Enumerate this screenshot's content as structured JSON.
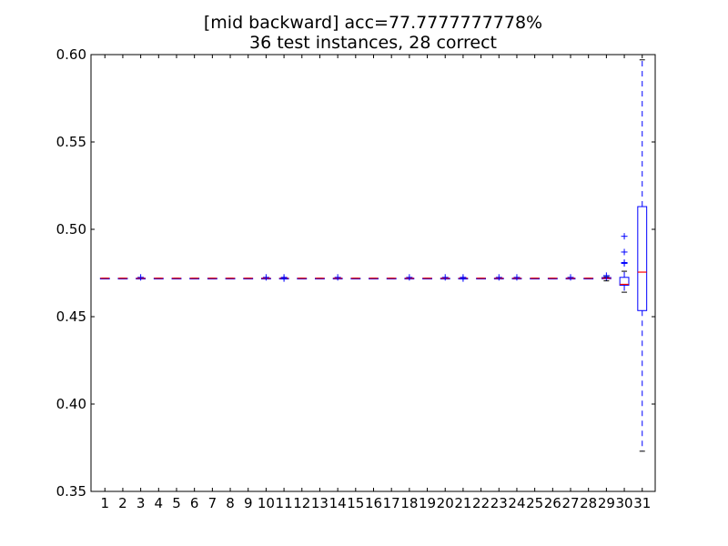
{
  "chart_data": {
    "type": "box",
    "title": "[mid backward] acc=77.7777777778%",
    "subtitle": "36 test instances, 28 correct",
    "xlabel": "",
    "ylabel": "",
    "ylim": [
      0.35,
      0.6
    ],
    "yticks": [
      0.35,
      0.4,
      0.45,
      0.5,
      0.55,
      0.6
    ],
    "ytick_labels": [
      "0.35",
      "0.40",
      "0.45",
      "0.50",
      "0.55",
      "0.60"
    ],
    "categories": [
      "1",
      "2",
      "3",
      "4",
      "5",
      "6",
      "7",
      "8",
      "9",
      "10",
      "11",
      "12",
      "13",
      "14",
      "15",
      "16",
      "17",
      "18",
      "19",
      "20",
      "21",
      "22",
      "23",
      "24",
      "25",
      "26",
      "27",
      "28",
      "29",
      "30",
      "31"
    ],
    "grid": false,
    "colors": {
      "box": "#0000ff",
      "median": "#ff0000",
      "flier": "#0000ff"
    },
    "boxes": [
      {
        "category": "1",
        "median": 0.472,
        "q1": 0.472,
        "q3": 0.472,
        "whislo": 0.472,
        "whishi": 0.472,
        "fliers": []
      },
      {
        "category": "2",
        "median": 0.472,
        "q1": 0.472,
        "q3": 0.472,
        "whislo": 0.472,
        "whishi": 0.472,
        "fliers": []
      },
      {
        "category": "3",
        "median": 0.472,
        "q1": 0.472,
        "q3": 0.472,
        "whislo": 0.472,
        "whishi": 0.472,
        "fliers": [
          0.4725
        ]
      },
      {
        "category": "4",
        "median": 0.472,
        "q1": 0.472,
        "q3": 0.472,
        "whislo": 0.472,
        "whishi": 0.472,
        "fliers": []
      },
      {
        "category": "5",
        "median": 0.472,
        "q1": 0.472,
        "q3": 0.472,
        "whislo": 0.472,
        "whishi": 0.472,
        "fliers": []
      },
      {
        "category": "6",
        "median": 0.472,
        "q1": 0.472,
        "q3": 0.472,
        "whislo": 0.472,
        "whishi": 0.472,
        "fliers": []
      },
      {
        "category": "7",
        "median": 0.472,
        "q1": 0.472,
        "q3": 0.472,
        "whislo": 0.472,
        "whishi": 0.472,
        "fliers": []
      },
      {
        "category": "8",
        "median": 0.472,
        "q1": 0.472,
        "q3": 0.472,
        "whislo": 0.472,
        "whishi": 0.472,
        "fliers": []
      },
      {
        "category": "9",
        "median": 0.472,
        "q1": 0.472,
        "q3": 0.472,
        "whislo": 0.472,
        "whishi": 0.472,
        "fliers": []
      },
      {
        "category": "10",
        "median": 0.472,
        "q1": 0.472,
        "q3": 0.472,
        "whislo": 0.472,
        "whishi": 0.472,
        "fliers": [
          0.4725
        ]
      },
      {
        "category": "11",
        "median": 0.472,
        "q1": 0.472,
        "q3": 0.472,
        "whislo": 0.472,
        "whishi": 0.472,
        "fliers": [
          0.4725,
          0.4718
        ]
      },
      {
        "category": "12",
        "median": 0.472,
        "q1": 0.472,
        "q3": 0.472,
        "whislo": 0.472,
        "whishi": 0.472,
        "fliers": []
      },
      {
        "category": "13",
        "median": 0.472,
        "q1": 0.472,
        "q3": 0.472,
        "whislo": 0.472,
        "whishi": 0.472,
        "fliers": []
      },
      {
        "category": "14",
        "median": 0.472,
        "q1": 0.472,
        "q3": 0.472,
        "whislo": 0.472,
        "whishi": 0.472,
        "fliers": [
          0.4725
        ]
      },
      {
        "category": "15",
        "median": 0.472,
        "q1": 0.472,
        "q3": 0.472,
        "whislo": 0.472,
        "whishi": 0.472,
        "fliers": []
      },
      {
        "category": "16",
        "median": 0.472,
        "q1": 0.472,
        "q3": 0.472,
        "whislo": 0.472,
        "whishi": 0.472,
        "fliers": []
      },
      {
        "category": "17",
        "median": 0.472,
        "q1": 0.472,
        "q3": 0.472,
        "whislo": 0.472,
        "whishi": 0.472,
        "fliers": []
      },
      {
        "category": "18",
        "median": 0.472,
        "q1": 0.472,
        "q3": 0.472,
        "whislo": 0.472,
        "whishi": 0.472,
        "fliers": [
          0.4725
        ]
      },
      {
        "category": "19",
        "median": 0.472,
        "q1": 0.472,
        "q3": 0.472,
        "whislo": 0.472,
        "whishi": 0.472,
        "fliers": []
      },
      {
        "category": "20",
        "median": 0.472,
        "q1": 0.472,
        "q3": 0.472,
        "whislo": 0.472,
        "whishi": 0.472,
        "fliers": [
          0.4725
        ]
      },
      {
        "category": "21",
        "median": 0.472,
        "q1": 0.472,
        "q3": 0.472,
        "whislo": 0.472,
        "whishi": 0.472,
        "fliers": [
          0.4725,
          0.4718
        ]
      },
      {
        "category": "22",
        "median": 0.472,
        "q1": 0.472,
        "q3": 0.472,
        "whislo": 0.472,
        "whishi": 0.472,
        "fliers": []
      },
      {
        "category": "23",
        "median": 0.472,
        "q1": 0.472,
        "q3": 0.472,
        "whislo": 0.472,
        "whishi": 0.472,
        "fliers": [
          0.4725
        ]
      },
      {
        "category": "24",
        "median": 0.472,
        "q1": 0.472,
        "q3": 0.472,
        "whislo": 0.472,
        "whishi": 0.472,
        "fliers": [
          0.4725
        ]
      },
      {
        "category": "25",
        "median": 0.472,
        "q1": 0.472,
        "q3": 0.472,
        "whislo": 0.472,
        "whishi": 0.472,
        "fliers": []
      },
      {
        "category": "26",
        "median": 0.472,
        "q1": 0.472,
        "q3": 0.472,
        "whislo": 0.472,
        "whishi": 0.472,
        "fliers": []
      },
      {
        "category": "27",
        "median": 0.472,
        "q1": 0.472,
        "q3": 0.472,
        "whislo": 0.472,
        "whishi": 0.472,
        "fliers": [
          0.4725
        ]
      },
      {
        "category": "28",
        "median": 0.472,
        "q1": 0.472,
        "q3": 0.472,
        "whislo": 0.472,
        "whishi": 0.472,
        "fliers": []
      },
      {
        "category": "29",
        "median": 0.472,
        "q1": 0.4717,
        "q3": 0.4724,
        "whislo": 0.4705,
        "whishi": 0.4728,
        "fliers": [
          0.4735
        ]
      },
      {
        "category": "30",
        "median": 0.4685,
        "q1": 0.468,
        "q3": 0.4725,
        "whislo": 0.464,
        "whishi": 0.476,
        "fliers": [
          0.4805,
          0.481,
          0.487,
          0.496
        ]
      },
      {
        "category": "31",
        "median": 0.4755,
        "q1": 0.4535,
        "q3": 0.513,
        "whislo": 0.373,
        "whishi": 0.597,
        "fliers": []
      }
    ]
  }
}
